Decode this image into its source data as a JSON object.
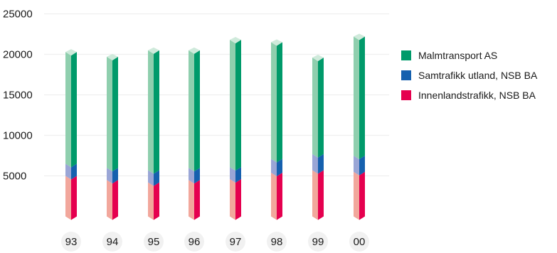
{
  "chart_data": {
    "type": "bar",
    "stacked": true,
    "categories": [
      "93",
      "94",
      "95",
      "96",
      "97",
      "98",
      "99",
      "00"
    ],
    "series": [
      {
        "name": "Innenlandstrafikk, NSB BA",
        "color": "#e5004f",
        "light_color": "#f2a79c",
        "values": [
          5000,
          4500,
          4200,
          4500,
          4600,
          5400,
          5700,
          5500
        ]
      },
      {
        "name": "Samtrafikk utland, NSB BA",
        "color": "#1560ae",
        "light_color": "#9aa6d6",
        "values": [
          1500,
          1500,
          1500,
          1500,
          1500,
          1700,
          2000,
          2000
        ]
      },
      {
        "name": "Malmtransport AS",
        "color": "#009a6a",
        "light_color": "#8fcfae",
        "values": [
          13800,
          13700,
          14800,
          14500,
          15700,
          14400,
          11900,
          14700
        ]
      }
    ],
    "yticks": [
      "5000",
      "10000",
      "15000",
      "20000",
      "25000"
    ],
    "ylim": [
      0,
      25000
    ],
    "grid": true,
    "legend_position": "right",
    "title": "",
    "xlabel": "",
    "ylabel": ""
  }
}
